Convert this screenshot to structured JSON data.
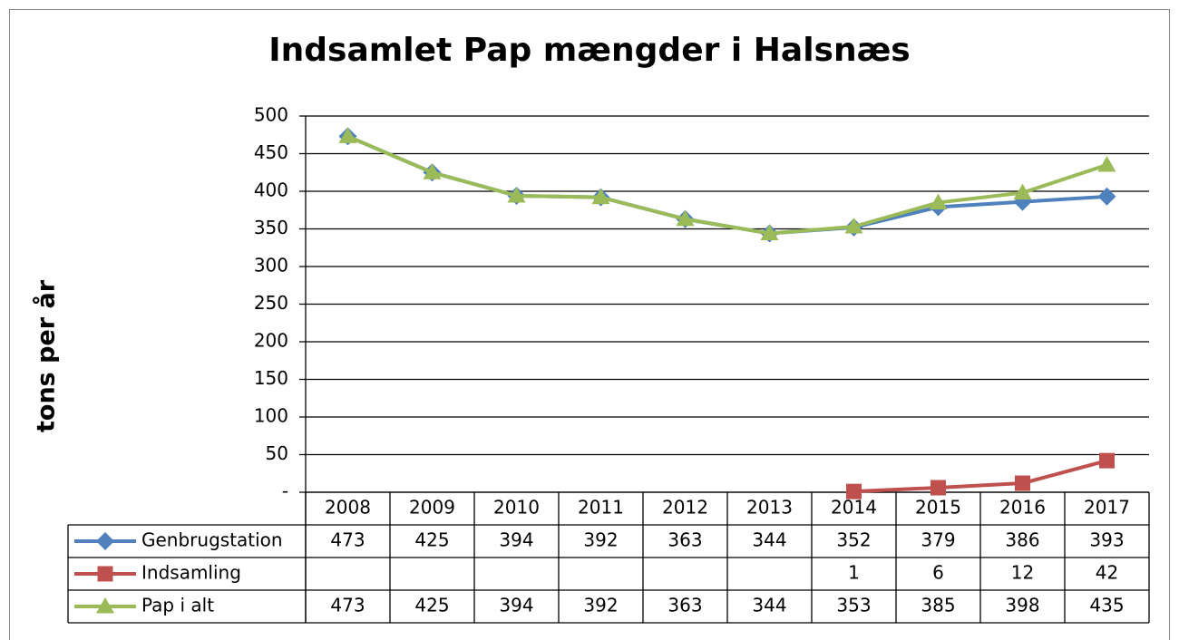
{
  "chart_data": {
    "type": "line",
    "title": "Indsamlet Pap mængder i Halsnæs",
    "y_label": "tons per år",
    "categories": [
      "2008",
      "2009",
      "2010",
      "2011",
      "2012",
      "2013",
      "2014",
      "2015",
      "2016",
      "2017"
    ],
    "series": [
      {
        "name": "Genbrugstation",
        "color": "#4f81bd",
        "marker": "diamond",
        "values": [
          473,
          425,
          394,
          392,
          363,
          344,
          352,
          379,
          386,
          393
        ]
      },
      {
        "name": "Indsamling",
        "color": "#c0504d",
        "marker": "square",
        "values": [
          null,
          null,
          null,
          null,
          null,
          null,
          1,
          6,
          12,
          42
        ]
      },
      {
        "name": "Pap i alt",
        "color": "#9bbb59",
        "marker": "triangle",
        "values": [
          473,
          425,
          394,
          392,
          363,
          344,
          353,
          385,
          398,
          435
        ]
      }
    ],
    "ylim": [
      0,
      500
    ],
    "yticks": [
      {
        "value": 0,
        "label": "-"
      },
      50,
      100,
      150,
      200,
      250,
      300,
      350,
      400,
      450,
      500
    ],
    "grid": true,
    "data_table": true
  }
}
